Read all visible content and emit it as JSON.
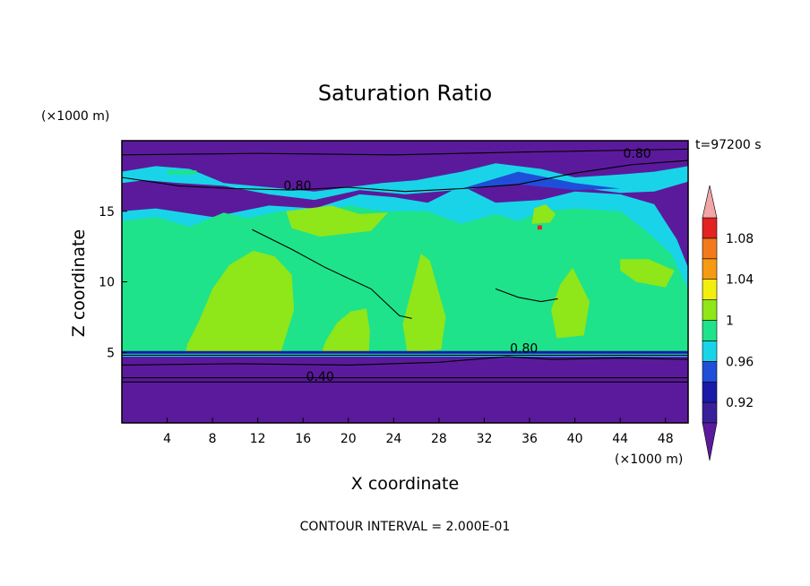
{
  "chart_data": {
    "type": "contour",
    "title": "Saturation Ratio",
    "xlabel": "X coordinate",
    "ylabel": "Z coordinate",
    "x_unit": "(×1000 m)",
    "y_unit": "(×1000 m)",
    "time_label": "t=97200 s",
    "footer": "CONTOUR INTERVAL = 2.000E-01",
    "xlim": [
      0,
      50
    ],
    "ylim": [
      0,
      20
    ],
    "x_ticks": [
      "4",
      "8",
      "12",
      "16",
      "20",
      "24",
      "28",
      "32",
      "36",
      "40",
      "44",
      "48"
    ],
    "x_tick_values": [
      4,
      8,
      12,
      16,
      20,
      24,
      28,
      32,
      36,
      40,
      44,
      48
    ],
    "y_ticks": [
      "5",
      "10",
      "15"
    ],
    "y_tick_values": [
      5,
      10,
      15
    ],
    "colorbar": {
      "labels": [
        "0.92",
        "0.96",
        "1",
        "1.04",
        "1.08"
      ],
      "label_values": [
        0.92,
        0.96,
        1.0,
        1.04,
        1.08
      ],
      "levels": [
        0.9,
        0.92,
        0.94,
        0.96,
        0.98,
        1.0,
        1.02,
        1.04,
        1.06,
        1.08,
        1.1
      ],
      "colors": [
        "#3a1f9a",
        "#1a1aa8",
        "#1f4fd9",
        "#19d4e8",
        "#1ee38a",
        "#8fe619",
        "#f2ee10",
        "#f59a12",
        "#f27a1a",
        "#e32222"
      ],
      "under_color": "#5b1a9c",
      "over_color": "#f2a6a6"
    },
    "contour_labels": [
      {
        "text": "0.80",
        "x": 45.5,
        "y": 18.8
      },
      {
        "text": "0.80",
        "x": 15.5,
        "y": 16.5
      },
      {
        "text": "0.80",
        "x": 35.5,
        "y": 5.0
      },
      {
        "text": "0.40",
        "x": 17.5,
        "y": 3.0
      }
    ]
  },
  "colors": {
    "purple": "#5b1a9c",
    "green": "#1ee38a",
    "lime": "#8fe619",
    "cyan": "#19d4e8",
    "blue": "#1f4fd9",
    "navy": "#1a1aa8",
    "yellow": "#f2ee10",
    "orange": "#f59a12",
    "red": "#e32222"
  }
}
